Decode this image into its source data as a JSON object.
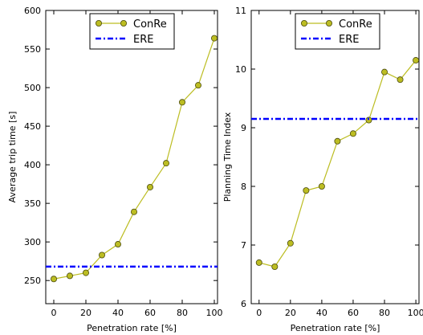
{
  "chart_data": [
    {
      "type": "line",
      "xlabel": "Penetration rate [%]",
      "ylabel": "Average trip time [s]",
      "xlim": [
        -5,
        102
      ],
      "ylim": [
        220,
        600
      ],
      "xticks": [
        0,
        20,
        40,
        60,
        80,
        100
      ],
      "yticks": [
        250,
        300,
        350,
        400,
        450,
        500,
        550,
        600
      ],
      "legend_position": "top-center",
      "grid": false,
      "series": [
        {
          "name": "ConRe",
          "color": "#bcbd22",
          "marker": "circle",
          "x": [
            0,
            10,
            20,
            30,
            40,
            50,
            60,
            70,
            80,
            90,
            100
          ],
          "values": [
            252,
            256,
            260,
            283,
            297,
            339,
            371,
            402,
            481,
            503,
            564
          ]
        },
        {
          "name": "ERE",
          "color": "#0000ff",
          "style": "dash-dot",
          "constant": 268
        }
      ]
    },
    {
      "type": "line",
      "xlabel": "Penetration rate [%]",
      "ylabel": "Planning Time Index",
      "xlim": [
        -5,
        102
      ],
      "ylim": [
        6,
        11
      ],
      "xticks": [
        0,
        20,
        40,
        60,
        80,
        100
      ],
      "yticks": [
        6,
        7,
        8,
        9,
        10,
        11
      ],
      "legend_position": "top-center",
      "grid": false,
      "series": [
        {
          "name": "ConRe",
          "color": "#bcbd22",
          "marker": "circle",
          "x": [
            0,
            10,
            20,
            30,
            40,
            50,
            60,
            70,
            80,
            90,
            100
          ],
          "values": [
            6.7,
            6.63,
            7.03,
            7.93,
            8.0,
            8.77,
            8.9,
            9.13,
            9.95,
            9.82,
            10.15
          ]
        },
        {
          "name": "ERE",
          "color": "#0000ff",
          "style": "dash-dot",
          "constant": 9.15
        }
      ]
    }
  ]
}
